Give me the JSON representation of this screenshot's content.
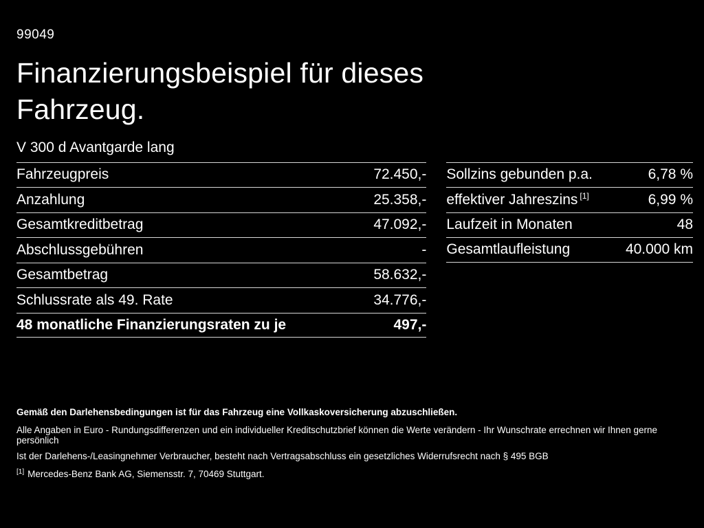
{
  "colors": {
    "background": "#000000",
    "text": "#ffffff",
    "divider": "#d9d9d9"
  },
  "page": {
    "id": "99049",
    "title_line1": "Finanzierungsbeispiel für dieses",
    "title_line2": "Fahrzeug.",
    "subtitle": "V 300 d Avantgarde lang"
  },
  "left_table": {
    "rows": [
      {
        "label": "Fahrzeugpreis",
        "value": "72.450,-"
      },
      {
        "label": "Anzahlung",
        "value": "25.358,-"
      },
      {
        "label": "Gesamtkreditbetrag",
        "value": "47.092,-"
      },
      {
        "label": "Abschlussgebühren",
        "value": "-"
      },
      {
        "label": "Gesamtbetrag",
        "value": "58.632,-"
      },
      {
        "label": "Schlussrate als 49. Rate",
        "value": "34.776,-"
      },
      {
        "label": "48 monatliche Finanzierungsraten zu je",
        "value": "497,-"
      }
    ]
  },
  "right_table": {
    "rows": [
      {
        "label": "Sollzins gebunden p.a.",
        "value": "6,78 %"
      },
      {
        "label": "effektiver Jahreszins",
        "footnote_marker": "[1]",
        "value": "6,99 %"
      },
      {
        "label": "Laufzeit in Monaten",
        "value": "48"
      },
      {
        "label": "Gesamtlaufleistung",
        "value": "40.000 km"
      }
    ]
  },
  "footer": {
    "line1": "Gemäß den Darlehensbedingungen ist für das Fahrzeug eine Vollkaskoversicherung abzuschließen.",
    "line2": "Alle Angaben in Euro - Rundungsdifferenzen und ein individueller Kreditschutzbrief können die Werte verändern - Ihr Wunschrate errechnen wir Ihnen gerne persönlich",
    "line3": "Ist der Darlehens-/Leasingnehmer Verbraucher, besteht nach Vertragsabschluss ein gesetzliches Widerrufsrecht nach § 495 BGB",
    "footnote_marker": "[1]",
    "footnote_text": "Mercedes-Benz Bank AG, Siemensstr. 7, 70469 Stuttgart."
  }
}
